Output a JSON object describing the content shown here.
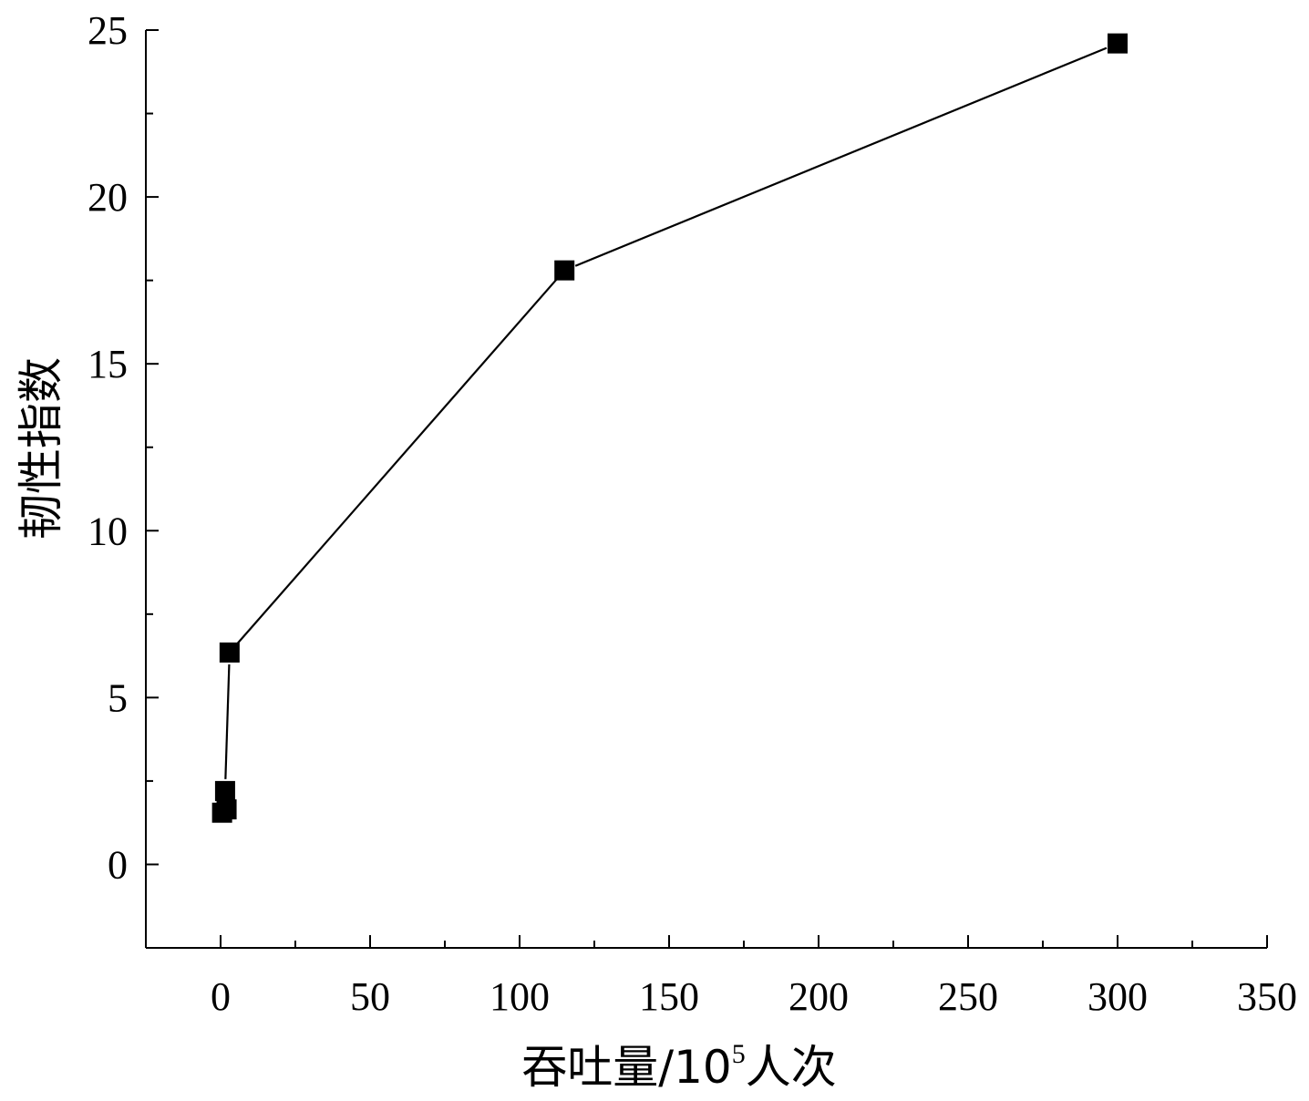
{
  "chart_data": {
    "type": "line",
    "xlabel": "吞吐量/10",
    "xlabel_sup": "5",
    "xlabel_tail": "人次",
    "ylabel": "韧性指数",
    "xlim": [
      -25,
      350
    ],
    "ylim": [
      -2.5,
      25
    ],
    "x_ticks": [
      0,
      50,
      100,
      150,
      200,
      250,
      300,
      350
    ],
    "y_ticks": [
      0,
      5,
      10,
      15,
      20,
      25
    ],
    "grid": false,
    "marker": "square",
    "series": [
      {
        "points": [
          {
            "x": 0.5,
            "y": 1.55
          },
          {
            "x": 2,
            "y": 1.65
          },
          {
            "x": 1.5,
            "y": 2.2
          },
          {
            "x": 3,
            "y": 6.35
          },
          {
            "x": 115,
            "y": 17.8
          },
          {
            "x": 300,
            "y": 24.6
          }
        ]
      }
    ],
    "color": "#000000"
  }
}
